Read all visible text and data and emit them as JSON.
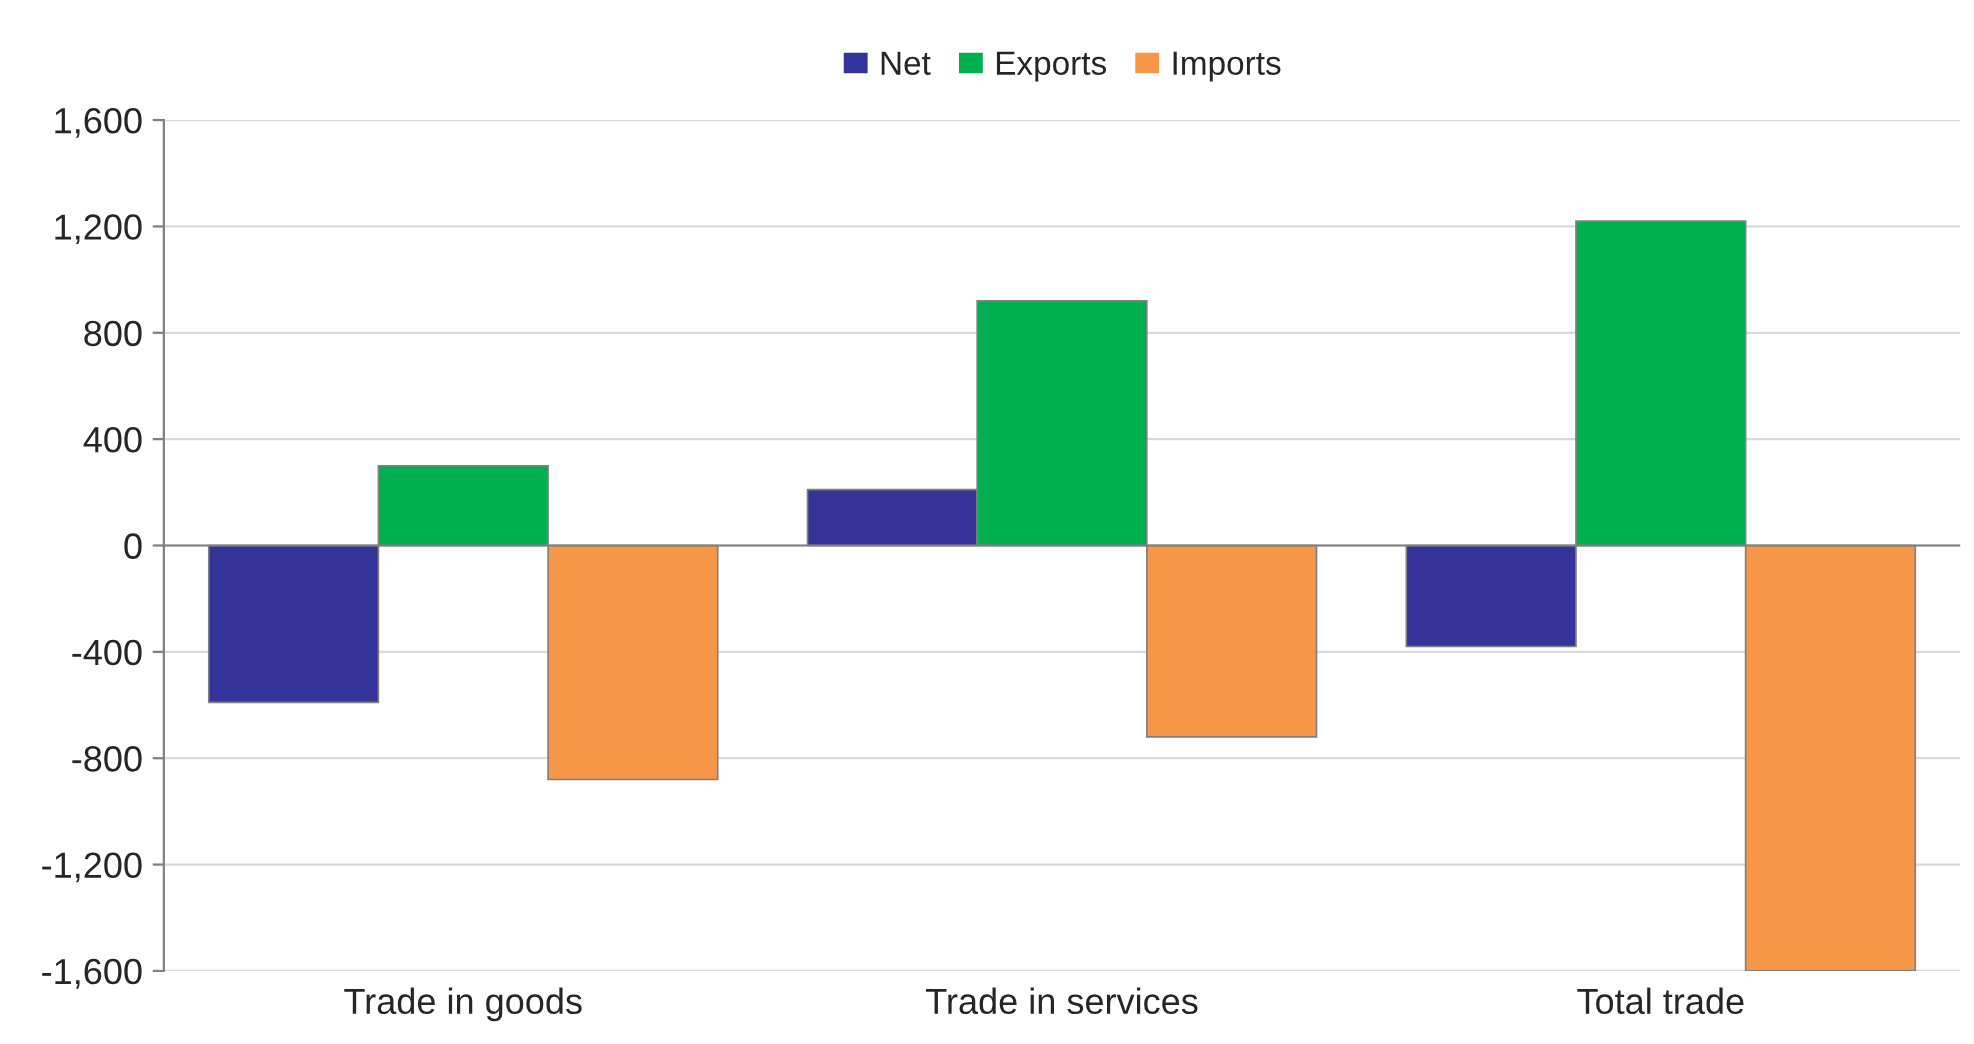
{
  "chart_data": {
    "type": "bar",
    "categories": [
      "Trade in goods",
      "Trade in services",
      "Total trade"
    ],
    "series": [
      {
        "name": "Net",
        "color": "#333399",
        "values": [
          -590,
          210,
          -380
        ]
      },
      {
        "name": "Exports",
        "color": "#00b050",
        "values": [
          300,
          920,
          1220
        ]
      },
      {
        "name": "Imports",
        "color": "#f79646",
        "values": [
          -880,
          -720,
          -1600
        ]
      }
    ],
    "ylim": [
      -1600,
      1600
    ],
    "yticks": [
      {
        "value": -1600,
        "label": "-1,600"
      },
      {
        "value": -1200,
        "label": "-1,200"
      },
      {
        "value": -800,
        "label": "-800"
      },
      {
        "value": -400,
        "label": "-400"
      },
      0,
      400,
      800,
      {
        "value": 1200,
        "label": "1,200"
      },
      {
        "value": 1600,
        "label": "1,600"
      }
    ],
    "grid": "y",
    "legend": "top"
  }
}
